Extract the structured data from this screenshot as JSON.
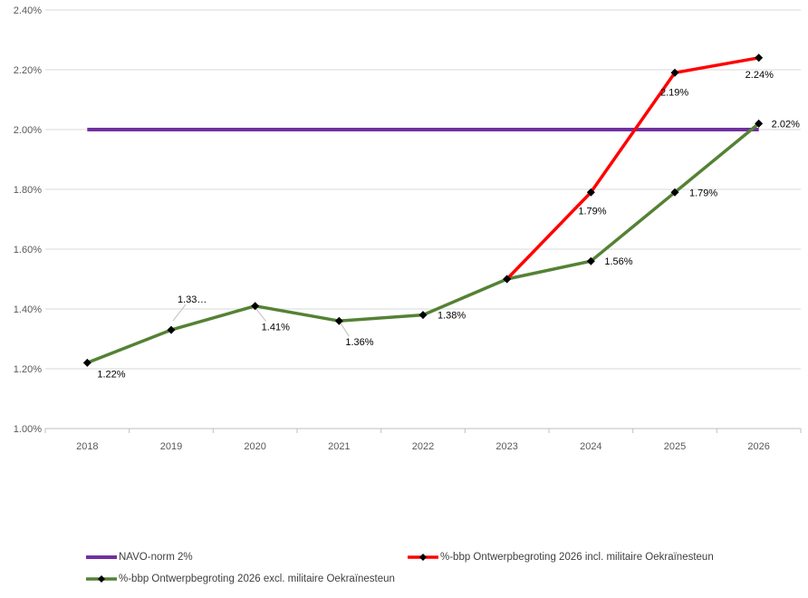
{
  "colors": {
    "background": "#FFFFFF",
    "grid": "#D9D9D9",
    "axis": "#BFBFBF",
    "axis_text": "#595959",
    "data_label": "#000000",
    "marker": "#000000",
    "navo_purple": "#7030A0",
    "incl_red": "#FF0000",
    "excl_green": "#548235"
  },
  "chart_data": {
    "type": "line",
    "categories": [
      "2018",
      "2019",
      "2020",
      "2021",
      "2022",
      "2023",
      "2024",
      "2025",
      "2026"
    ],
    "ylim": [
      1.0,
      2.4
    ],
    "ytick_step": 0.2,
    "ytick_labels": [
      "2.40%",
      "2.20%",
      "2.00%",
      "1.80%",
      "1.60%",
      "1.40%",
      "1.20%",
      "1.00%"
    ],
    "grid": true,
    "legend_position": "bottom",
    "series": [
      {
        "name": "NAVO-norm 2%",
        "color": "#7030A0",
        "marker": "none",
        "line_width": 4,
        "points": [
          {
            "x": "2018",
            "value": 2.0
          },
          {
            "x": "2019",
            "value": 2.0
          },
          {
            "x": "2020",
            "value": 2.0
          },
          {
            "x": "2021",
            "value": 2.0
          },
          {
            "x": "2022",
            "value": 2.0
          },
          {
            "x": "2023",
            "value": 2.0
          },
          {
            "x": "2024",
            "value": 2.0
          },
          {
            "x": "2025",
            "value": 2.0
          },
          {
            "x": "2026",
            "value": 2.0
          }
        ]
      },
      {
        "name": "%-bbp Ontwerpbegroting 2026 incl. militaire Oekraïnesteun",
        "color": "#FF0000",
        "marker": "diamond",
        "line_width": 3.5,
        "points": [
          {
            "x": "2023",
            "value": 1.5
          },
          {
            "x": "2024",
            "value": 1.79,
            "label": "1.79%",
            "label_dx": -14,
            "label_dy": 24
          },
          {
            "x": "2025",
            "value": 2.19,
            "label": "2.19%",
            "label_dx": -16,
            "label_dy": 25
          },
          {
            "x": "2026",
            "value": 2.24,
            "label": "2.24%",
            "label_dx": -15,
            "label_dy": 22
          }
        ]
      },
      {
        "name": "%-bbp Ontwerpbegroting 2026 excl. militaire Oekraïnesteun",
        "color": "#548235",
        "marker": "diamond",
        "line_width": 3.5,
        "points": [
          {
            "x": "2018",
            "value": 1.22,
            "label": "1.22%",
            "label_dx": 11,
            "label_dy": 16
          },
          {
            "x": "2019",
            "value": 1.33,
            "label": "1.33…",
            "label_dx": 7,
            "label_dy": -30,
            "leader": [
              2,
              -10,
              16,
              -28
            ]
          },
          {
            "x": "2020",
            "value": 1.41,
            "label": "1.41%",
            "label_dx": 7,
            "label_dy": 27,
            "leader": [
              1,
              3,
              12,
              17
            ]
          },
          {
            "x": "2021",
            "value": 1.36,
            "label": "1.36%",
            "label_dx": 7,
            "label_dy": 27,
            "leader": [
              2,
              3,
              11,
              17
            ]
          },
          {
            "x": "2022",
            "value": 1.38,
            "label": "1.38%",
            "label_dx": 16,
            "label_dy": 4
          },
          {
            "x": "2023",
            "value": 1.5
          },
          {
            "x": "2024",
            "value": 1.56,
            "label": "1.56%",
            "label_dx": 15,
            "label_dy": 4
          },
          {
            "x": "2025",
            "value": 1.79,
            "label": "1.79%",
            "label_dx": 16,
            "label_dy": 4
          },
          {
            "x": "2026",
            "value": 2.02,
            "label": "2.02%",
            "label_dx": 14,
            "label_dy": 4
          }
        ]
      }
    ]
  }
}
